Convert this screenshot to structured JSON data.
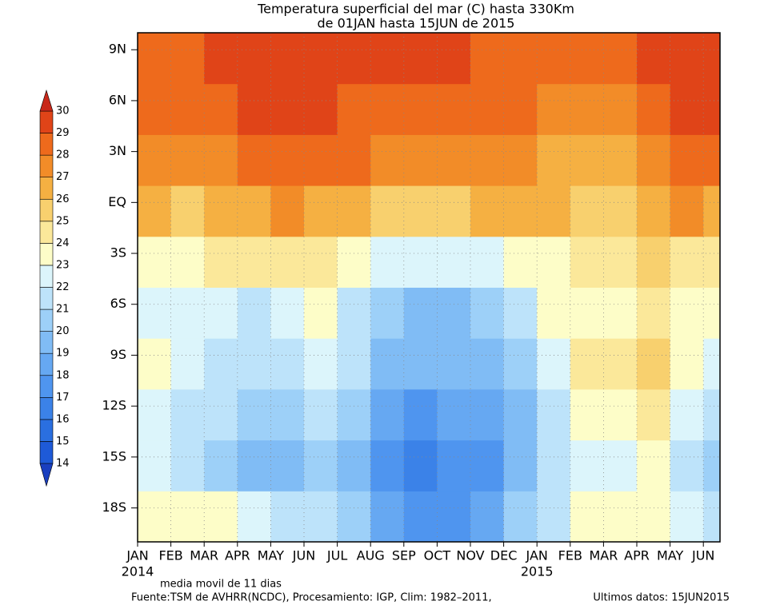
{
  "chart_data": {
    "type": "heatmap",
    "title": "Temperatura superficial del mar (C) hasta 330Km",
    "subtitle": "de 01JAN hasta 15JUN de 2015",
    "x_bins": [
      0,
      1,
      2,
      3,
      4,
      5,
      6,
      7,
      8,
      9,
      10,
      11,
      12,
      13,
      14,
      15,
      16,
      17,
      17.5
    ],
    "y_bins": [
      -20,
      -17,
      -14,
      -11,
      -8,
      -5,
      -2,
      1,
      4,
      7,
      10
    ],
    "values": [
      [
        23.5,
        23.3,
        23,
        22,
        21.5,
        21.5,
        20.5,
        18.5,
        17.5,
        17.5,
        18.5,
        20,
        21.5,
        23.3,
        23,
        23.8,
        22.3,
        21.5
      ],
      [
        22.5,
        21,
        20.5,
        19.8,
        19.7,
        20.8,
        19.8,
        17.5,
        16.8,
        17,
        17.5,
        19,
        21,
        22.5,
        22.5,
        23.5,
        21.5,
        20
      ],
      [
        22.5,
        21.5,
        21,
        20.5,
        20.3,
        21.5,
        20.5,
        18.5,
        17.5,
        18,
        18.5,
        19.5,
        21.5,
        23,
        23,
        24,
        22.5,
        21.5
      ],
      [
        23.5,
        22.5,
        21.8,
        21.5,
        21.5,
        22.8,
        21,
        19.5,
        19,
        19.5,
        19.5,
        20.5,
        22.5,
        24,
        24.5,
        25.5,
        23.3,
        22.8
      ],
      [
        22.8,
        22,
        22.3,
        21.8,
        22.5,
        23,
        21.5,
        20,
        19.5,
        19.6,
        20,
        21,
        23,
        23.5,
        23.5,
        24.8,
        23.5,
        23.3
      ],
      [
        23.5,
        23.5,
        24,
        24.5,
        24.5,
        24,
        23,
        22,
        22,
        22.3,
        22.8,
        23,
        23.5,
        24,
        24,
        25,
        24.5,
        24.3
      ],
      [
        26,
        25.8,
        26.5,
        26.8,
        27,
        26.5,
        26,
        25.3,
        25,
        25.5,
        26,
        26,
        26.2,
        25.7,
        25.5,
        26.8,
        27.2,
        26.5
      ],
      [
        27,
        27.3,
        27.5,
        28.3,
        28.6,
        28.5,
        28,
        27.5,
        27.3,
        27.3,
        27.5,
        27.2,
        26.8,
        26.5,
        26.3,
        27.5,
        28.3,
        28
      ],
      [
        28,
        28,
        28.5,
        29,
        29.2,
        29,
        28.8,
        28.5,
        28.6,
        28.7,
        28.5,
        28.3,
        27.8,
        27.5,
        27,
        28,
        29,
        29
      ],
      [
        28.5,
        28.5,
        29,
        29.2,
        29.3,
        29.2,
        29,
        29,
        29,
        29,
        28.8,
        28.8,
        28.5,
        28.5,
        28.7,
        29,
        29.3,
        29.3
      ]
    ],
    "xlim": [
      0,
      17.5
    ],
    "ylim": [
      -20,
      10
    ],
    "xticks": [
      {
        "value": 0,
        "label": "JAN"
      },
      {
        "value": 1,
        "label": "FEB"
      },
      {
        "value": 2,
        "label": "MAR"
      },
      {
        "value": 3,
        "label": "APR"
      },
      {
        "value": 4,
        "label": "MAY"
      },
      {
        "value": 5,
        "label": "JUN"
      },
      {
        "value": 6,
        "label": "JUL"
      },
      {
        "value": 7,
        "label": "AUG"
      },
      {
        "value": 8,
        "label": "SEP"
      },
      {
        "value": 9,
        "label": "OCT"
      },
      {
        "value": 10,
        "label": "NOV"
      },
      {
        "value": 11,
        "label": "DEC"
      },
      {
        "value": 12,
        "label": "JAN"
      },
      {
        "value": 13,
        "label": "FEB"
      },
      {
        "value": 14,
        "label": "MAR"
      },
      {
        "value": 15,
        "label": "APR"
      },
      {
        "value": 16,
        "label": "MAY"
      },
      {
        "value": 17,
        "label": "JUN"
      }
    ],
    "year_labels": [
      {
        "value": 0,
        "label": "2014"
      },
      {
        "value": 12,
        "label": "2015"
      }
    ],
    "yticks": [
      {
        "value": 9,
        "label": "9N"
      },
      {
        "value": 6,
        "label": "6N"
      },
      {
        "value": 3,
        "label": "3N"
      },
      {
        "value": 0,
        "label": "EQ"
      },
      {
        "value": -3,
        "label": "3S"
      },
      {
        "value": -6,
        "label": "6S"
      },
      {
        "value": -9,
        "label": "9S"
      },
      {
        "value": -12,
        "label": "12S"
      },
      {
        "value": -15,
        "label": "15S"
      },
      {
        "value": -18,
        "label": "18S"
      }
    ],
    "grid": true,
    "colorbar": {
      "levels": [
        14,
        15,
        16,
        17,
        18,
        19,
        20,
        21,
        22,
        23,
        24,
        25,
        26,
        27,
        28,
        29,
        30
      ],
      "colors": [
        "#1a3fbf",
        "#1e5ad8",
        "#2a6fe0",
        "#3b82e8",
        "#4f95ef",
        "#66a8f2",
        "#80bcf5",
        "#9dd0f8",
        "#bde3fa",
        "#dcf5fb",
        "#fdfdc8",
        "#fbe89a",
        "#f8d06e",
        "#f5b042",
        "#f28c28",
        "#ee6a1c",
        "#e04418",
        "#c8281a"
      ]
    },
    "notes": [
      "media movil de 11 dias",
      "Fuente:TSM de AVHRR(NCDC), Procesamiento: IGP, Clim: 1982–2011,",
      "Ultimos datos: 15JUN2015"
    ]
  }
}
